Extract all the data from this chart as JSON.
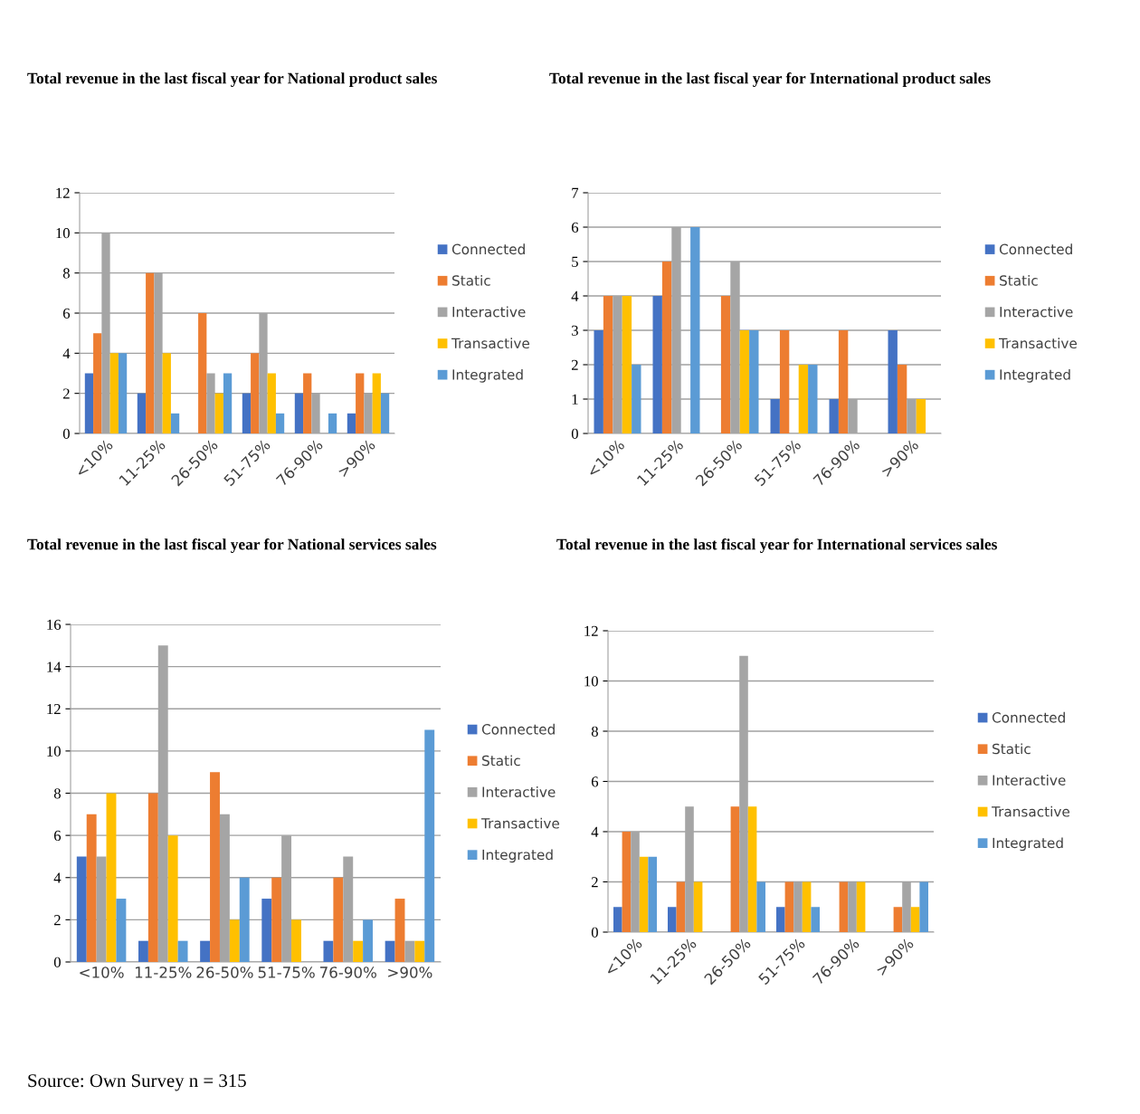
{
  "chart_data": [
    {
      "type": "bar",
      "title": "Total revenue in the last fiscal year for National product sales",
      "categories": [
        "<10%",
        "11-25%",
        "26-50%",
        "51-75%",
        "76-90%",
        ">90%"
      ],
      "ylim": [
        0,
        12
      ],
      "yticks": [
        0,
        2,
        4,
        6,
        8,
        10,
        12
      ],
      "grid": "y",
      "legend": "right",
      "series": [
        {
          "name": "Connected",
          "color": "#4472c4",
          "values": [
            3,
            2,
            0,
            2,
            2,
            1
          ]
        },
        {
          "name": "Static",
          "color": "#ed7d31",
          "values": [
            5,
            8,
            6,
            4,
            3,
            3
          ]
        },
        {
          "name": "Interactive",
          "color": "#a5a5a5",
          "values": [
            10,
            8,
            3,
            6,
            2,
            2
          ]
        },
        {
          "name": "Transactive",
          "color": "#ffc000",
          "values": [
            4,
            4,
            2,
            3,
            0,
            3
          ]
        },
        {
          "name": "Integrated",
          "color": "#5b9bd5",
          "values": [
            4,
            1,
            3,
            1,
            1,
            2
          ]
        }
      ]
    },
    {
      "type": "bar",
      "title": "Total revenue in the last fiscal year for International product sales",
      "categories": [
        "<10%",
        "11-25%",
        "26-50%",
        "51-75%",
        "76-90%",
        ">90%"
      ],
      "ylim": [
        0,
        7
      ],
      "yticks": [
        0,
        1,
        2,
        3,
        4,
        5,
        6,
        7
      ],
      "grid": "y",
      "legend": "right",
      "series": [
        {
          "name": "Connected",
          "color": "#4472c4",
          "values": [
            3,
            4,
            0,
            1,
            1,
            3
          ]
        },
        {
          "name": "Static",
          "color": "#ed7d31",
          "values": [
            4,
            5,
            4,
            3,
            3,
            2
          ]
        },
        {
          "name": "Interactive",
          "color": "#a5a5a5",
          "values": [
            4,
            6,
            5,
            0,
            1,
            1
          ]
        },
        {
          "name": "Transactive",
          "color": "#ffc000",
          "values": [
            4,
            0,
            3,
            2,
            0,
            1
          ]
        },
        {
          "name": "Integrated",
          "color": "#5b9bd5",
          "values": [
            2,
            6,
            3,
            2,
            0,
            0
          ]
        }
      ]
    },
    {
      "type": "bar",
      "title": "Total revenue in the last fiscal year for National services sales",
      "categories": [
        "<10%",
        "11-25%",
        "26-50%",
        "51-75%",
        "76-90%",
        ">90%"
      ],
      "ylim": [
        0,
        16
      ],
      "yticks": [
        0,
        2,
        4,
        6,
        8,
        10,
        12,
        14,
        16
      ],
      "grid": "y",
      "legend": "right",
      "series": [
        {
          "name": "Connected",
          "color": "#4472c4",
          "values": [
            5,
            1,
            1,
            3,
            1,
            1
          ]
        },
        {
          "name": "Static",
          "color": "#ed7d31",
          "values": [
            7,
            8,
            9,
            4,
            4,
            3
          ]
        },
        {
          "name": "Interactive",
          "color": "#a5a5a5",
          "values": [
            5,
            15,
            7,
            6,
            5,
            1
          ]
        },
        {
          "name": "Transactive",
          "color": "#ffc000",
          "values": [
            8,
            6,
            2,
            2,
            1,
            1
          ]
        },
        {
          "name": "Integrated",
          "color": "#5b9bd5",
          "values": [
            3,
            1,
            4,
            0,
            2,
            11
          ]
        }
      ]
    },
    {
      "type": "bar",
      "title": "Total revenue in the last fiscal year for International services sales",
      "categories": [
        "<10%",
        "11-25%",
        "26-50%",
        "51-75%",
        "76-90%",
        ">90%"
      ],
      "ylim": [
        0,
        12
      ],
      "yticks": [
        0,
        2,
        4,
        6,
        8,
        10,
        12
      ],
      "grid": "y",
      "legend": "right",
      "annotations": [
        "Source: Own Survey n = 315"
      ],
      "series": [
        {
          "name": "Connected",
          "color": "#4472c4",
          "values": [
            1,
            1,
            0,
            1,
            0,
            0
          ]
        },
        {
          "name": "Static",
          "color": "#ed7d31",
          "values": [
            4,
            2,
            5,
            2,
            2,
            1
          ]
        },
        {
          "name": "Interactive",
          "color": "#a5a5a5",
          "values": [
            4,
            5,
            11,
            2,
            2,
            2
          ]
        },
        {
          "name": "Transactive",
          "color": "#ffc000",
          "values": [
            3,
            2,
            5,
            2,
            2,
            1
          ]
        },
        {
          "name": "Integrated",
          "color": "#5b9bd5",
          "values": [
            3,
            0,
            2,
            1,
            0,
            2
          ]
        }
      ]
    }
  ]
}
